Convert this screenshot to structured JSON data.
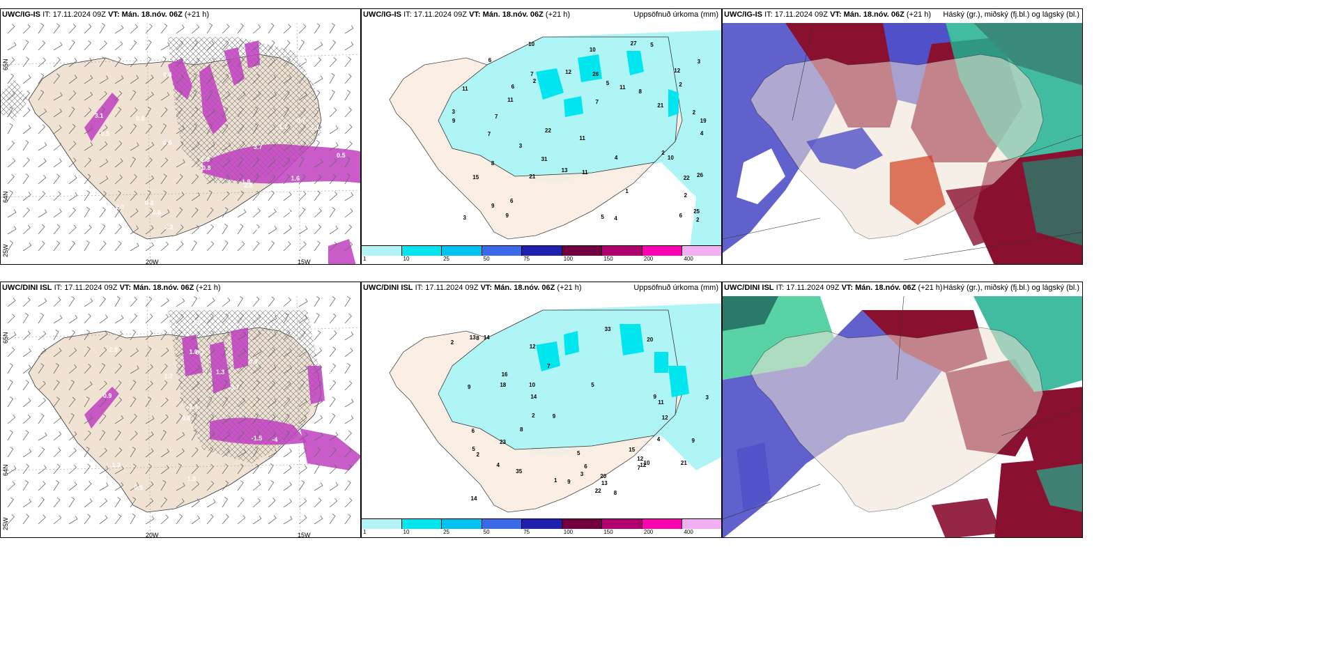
{
  "rows": [
    {
      "model": "UWC/IG-IS",
      "it_label": "IT:",
      "it_value": "17.11.2024 09Z",
      "vt_label": "VT:",
      "vt_value": "Mán. 18.nóv. 06Z",
      "lead": "(+21 h)"
    },
    {
      "model": "UWC/DINI ISL",
      "it_label": "IT:",
      "it_value": "17.11.2024 09Z",
      "vt_label": "VT:",
      "vt_value": "Mán. 18.nóv. 06Z",
      "lead": "(+21 h)"
    }
  ],
  "precip_panel": {
    "subtitle": "Uppsöfnuð úrkoma (mm)",
    "legend": {
      "colors": [
        "#b3f5f5",
        "#00e5ee",
        "#00c2ee",
        "#3b6ae8",
        "#2020b0",
        "#700040",
        "#b00070",
        "#ff00b0",
        "#f2b0f2"
      ],
      "ticks": [
        "1",
        "10",
        "25",
        "50",
        "75",
        "100",
        "150",
        "200",
        "400"
      ]
    },
    "row1_values": [
      "2",
      "2",
      "11",
      "19",
      "22",
      "26",
      "31",
      "27",
      "22",
      "12",
      "11",
      "10",
      "21",
      "21",
      "15",
      "11",
      "3",
      "3",
      "10",
      "12",
      "25",
      "26",
      "9",
      "8",
      "7",
      "5",
      "3",
      "1",
      "5",
      "3",
      "9",
      "2",
      "7",
      "10",
      "7",
      "9",
      "4",
      "4",
      "2",
      "2",
      "4",
      "11",
      "13",
      "11",
      "2",
      "6",
      "5",
      "8",
      "7",
      "6",
      "6",
      "6"
    ],
    "row2_values": [
      "1",
      "6",
      "5",
      "2",
      "3",
      "2",
      "3",
      "6",
      "9",
      "16",
      "23",
      "21",
      "9",
      "8",
      "20",
      "13",
      "12",
      "12",
      "9",
      "11",
      "14",
      "12",
      "18",
      "14",
      "20",
      "35",
      "33",
      "22",
      "12",
      "10",
      "13",
      "15",
      "4",
      "5",
      "7",
      "7",
      "8",
      "10",
      "9",
      "8",
      "14",
      "4",
      "2",
      "5",
      "9"
    ]
  },
  "cloud_panel": {
    "subtitle": "Háský (gr.), miðský (fj.bl.) og lágský (bl.)"
  },
  "wind_panel": {
    "lon_labels": [
      "20W",
      "15W"
    ],
    "lat_labels": [
      "65N",
      "64N",
      "25W"
    ],
    "row1_values": [
      "0.6",
      "0.4",
      "0.3",
      "0.8",
      "0.7",
      "0.4",
      "0.5",
      "0.6",
      "0.8",
      "0.6",
      "2.0",
      "3.1",
      "2.3",
      "1.9",
      "1.7",
      "0.9",
      "0.5",
      "0.5",
      "1.6",
      "2.1",
      "3.7",
      "2.5",
      "3.2",
      "2.8",
      "3.7"
    ],
    "row2_values": [
      "1.9",
      "0.9",
      "0.5",
      "0.6",
      "0.9",
      "1.4",
      "1.0",
      "1.3",
      "1.3",
      "1.7",
      "0.9",
      "0.5",
      "0.7",
      "3.7",
      "-4",
      "-2.9",
      "-1.5",
      "-1.5",
      "-1.5",
      "-8.2",
      "-2.4",
      "1.5"
    ]
  },
  "colors": {
    "land": "#f0e3d4",
    "land_precip": "#fbeee3",
    "precip_light": "#b0f5f5",
    "magenta": "#c040c0",
    "cloud_high": "#8a1030",
    "cloud_mid": "#5050c8",
    "cloud_low": "#20b090",
    "cloud_green": "#30c890"
  }
}
